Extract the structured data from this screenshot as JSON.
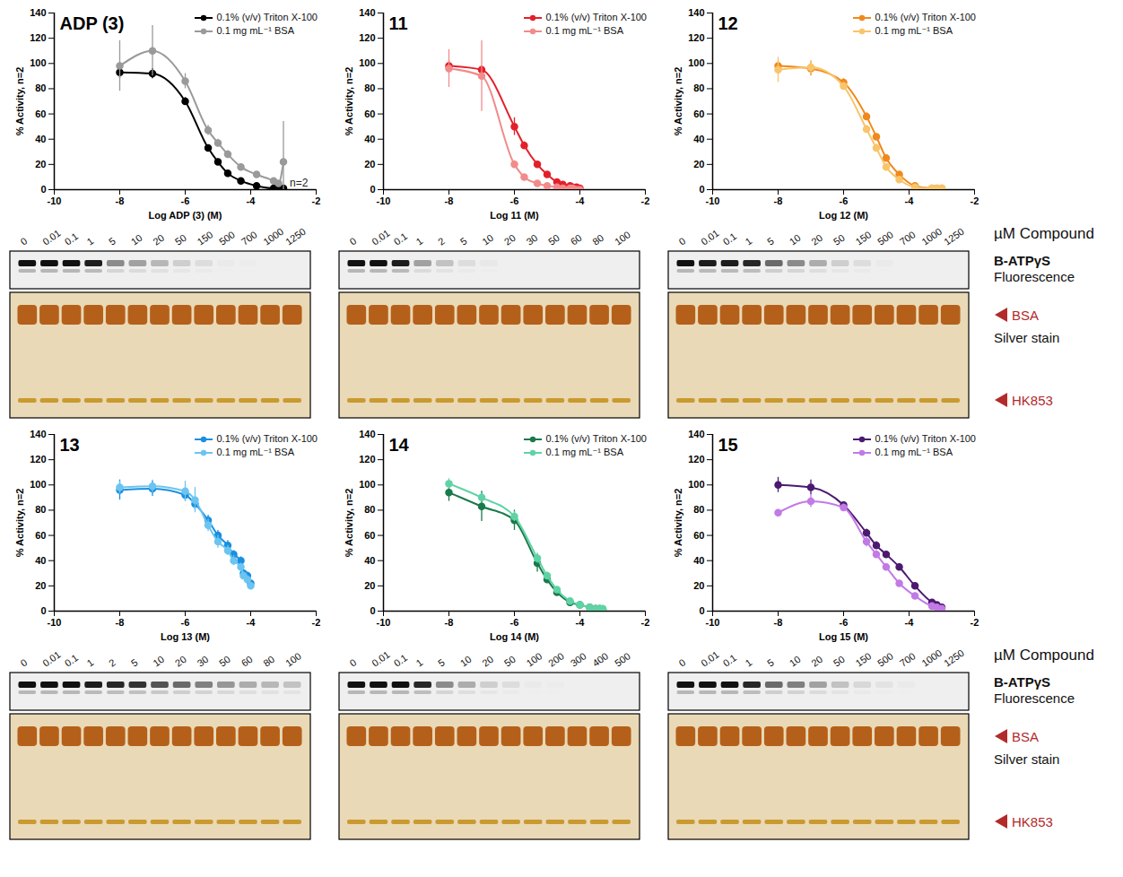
{
  "chart_data": [
    {
      "type": "line",
      "title": "ADP (3)",
      "x_label": "Log ADP (3) (M)",
      "y_label": "% Activity, n=2",
      "xlim": [
        -10,
        -2
      ],
      "xticks": [
        -10,
        -8,
        -6,
        -4,
        -2
      ],
      "ylim": [
        0,
        140
      ],
      "yticks": [
        0,
        20,
        40,
        60,
        80,
        100,
        120,
        140
      ],
      "legend": "top-right",
      "x": [
        -8,
        -7,
        -6,
        -5.3,
        -5,
        -4.7,
        -4.3,
        -3.82,
        -3.3,
        -3.15,
        -3
      ],
      "series": [
        {
          "name": "0.1% (v/v) Triton X-100",
          "color": "#000000",
          "marker": "circle",
          "line_style": "solid",
          "values": [
            93,
            92,
            70,
            33,
            22,
            13,
            7,
            3,
            1,
            1,
            1
          ],
          "errors": [
            5,
            4,
            3,
            2,
            2,
            1,
            1,
            1,
            1,
            1,
            1
          ]
        },
        {
          "name": "0.1 mg mL⁻¹ BSA",
          "color": "#9a9a9a",
          "marker": "circle",
          "line_style": "solid",
          "values": [
            98,
            110,
            86,
            47,
            37,
            28,
            18,
            12,
            7,
            5,
            22
          ],
          "errors": [
            20,
            20,
            6,
            4,
            3,
            3,
            2,
            2,
            2,
            2,
            32
          ]
        }
      ],
      "annotations": [
        {
          "text": "n=2",
          "x": -3,
          "y": 5
        }
      ],
      "gel": {
        "lanes": [
          "0",
          "0.01",
          "0.1",
          "1",
          "5",
          "10",
          "20",
          "50",
          "150",
          "500",
          "700",
          "1000",
          "1250"
        ],
        "fluorescence": [
          1,
          1,
          1,
          0.95,
          0.45,
          0.35,
          0.25,
          0.15,
          0.08,
          0.02,
          0.01,
          0,
          0
        ]
      }
    },
    {
      "type": "line",
      "title": "11",
      "x_label": "Log 11 (M)",
      "y_label": "% Activity, n=2",
      "xlim": [
        -10,
        -2
      ],
      "xticks": [
        -10,
        -8,
        -6,
        -4,
        -2
      ],
      "ylim": [
        0,
        140
      ],
      "yticks": [
        0,
        20,
        40,
        60,
        80,
        100,
        120,
        140
      ],
      "legend": "top-right",
      "x": [
        -8,
        -7,
        -6,
        -5.7,
        -5.3,
        -5,
        -4.7,
        -4.52,
        -4.3,
        -4.22,
        -4.1,
        -4
      ],
      "series": [
        {
          "name": "0.1% (v/v) Triton X-100",
          "color": "#e3202a",
          "marker": "circle",
          "line_style": "solid",
          "values": [
            98,
            95,
            50,
            35,
            20,
            12,
            6,
            4,
            3,
            2,
            2,
            1
          ],
          "errors": [
            4,
            3,
            7,
            3,
            2,
            2,
            1,
            1,
            1,
            1,
            1,
            1
          ]
        },
        {
          "name": "0.1 mg mL⁻¹ BSA",
          "color": "#f28b8b",
          "marker": "circle",
          "line_style": "solid",
          "values": [
            96,
            90,
            20,
            10,
            5,
            3,
            2,
            1,
            1,
            1,
            0,
            0
          ],
          "errors": [
            15,
            28,
            3,
            2,
            1,
            1,
            1,
            1,
            1,
            1,
            1,
            1
          ]
        }
      ],
      "gel": {
        "lanes": [
          "0",
          "0.01",
          "0.1",
          "1",
          "2",
          "5",
          "10",
          "20",
          "30",
          "50",
          "60",
          "80",
          "100"
        ],
        "fluorescence": [
          1,
          1,
          0.95,
          0.35,
          0.2,
          0.08,
          0.03,
          0,
          0,
          0,
          0,
          0,
          0
        ]
      }
    },
    {
      "type": "line",
      "title": "12",
      "x_label": "Log 12 (M)",
      "y_label": "% Activity, n=2",
      "xlim": [
        -10,
        -2
      ],
      "xticks": [
        -10,
        -8,
        -6,
        -4,
        -2
      ],
      "ylim": [
        0,
        140
      ],
      "yticks": [
        0,
        20,
        40,
        60,
        80,
        100,
        120,
        140
      ],
      "legend": "top-right",
      "x": [
        -8,
        -7,
        -6,
        -5.3,
        -5,
        -4.7,
        -4.3,
        -3.82,
        -3.3,
        -3.15,
        -3
      ],
      "series": [
        {
          "name": "0.1% (v/v) Triton X-100",
          "color": "#f0891c",
          "marker": "circle",
          "line_style": "solid",
          "values": [
            98,
            96,
            85,
            58,
            42,
            25,
            12,
            3,
            1,
            1,
            1
          ],
          "errors": [
            4,
            6,
            3,
            3,
            2,
            2,
            2,
            1,
            1,
            1,
            1
          ]
        },
        {
          "name": "0.1 mg mL⁻¹ BSA",
          "color": "#f9c46a",
          "marker": "circle",
          "line_style": "solid",
          "values": [
            95,
            97,
            82,
            48,
            33,
            18,
            8,
            2,
            1,
            1,
            1
          ],
          "errors": [
            10,
            5,
            3,
            3,
            3,
            2,
            2,
            1,
            1,
            1,
            1
          ]
        }
      ],
      "gel": {
        "lanes": [
          "0",
          "0.01",
          "0.1",
          "1",
          "5",
          "10",
          "20",
          "50",
          "150",
          "500",
          "700",
          "1000",
          "1250"
        ],
        "fluorescence": [
          1,
          0.95,
          0.95,
          0.9,
          0.6,
          0.45,
          0.3,
          0.15,
          0.08,
          0.02,
          0,
          0,
          0
        ]
      }
    },
    {
      "type": "line",
      "title": "13",
      "x_label": "Log 13 (M)",
      "y_label": "% Activity, n=2",
      "xlim": [
        -10,
        -2
      ],
      "xticks": [
        -10,
        -8,
        -6,
        -4,
        -2
      ],
      "ylim": [
        0,
        140
      ],
      "yticks": [
        0,
        20,
        40,
        60,
        80,
        100,
        120,
        140
      ],
      "legend": "top-right",
      "x": [
        -8,
        -7,
        -6,
        -5.7,
        -5.3,
        -5,
        -4.7,
        -4.52,
        -4.3,
        -4.22,
        -4.1,
        -4
      ],
      "series": [
        {
          "name": "0.1% (v/v) Triton X-100",
          "color": "#1a8fe0",
          "marker": "circle",
          "line_style": "solid",
          "values": [
            96,
            97,
            92,
            85,
            72,
            60,
            52,
            45,
            40,
            30,
            28,
            22
          ],
          "errors": [
            8,
            6,
            5,
            5,
            4,
            4,
            4,
            3,
            3,
            3,
            3,
            3
          ]
        },
        {
          "name": "0.1 mg mL⁻¹ BSA",
          "color": "#6cc4f0",
          "marker": "circle",
          "line_style": "solid",
          "values": [
            98,
            99,
            95,
            88,
            68,
            55,
            48,
            40,
            35,
            28,
            25,
            20
          ],
          "errors": [
            5,
            5,
            8,
            10,
            5,
            5,
            4,
            4,
            3,
            3,
            3,
            3
          ]
        }
      ],
      "gel": {
        "lanes": [
          "0",
          "0.01",
          "0.1",
          "1",
          "2",
          "5",
          "10",
          "20",
          "30",
          "50",
          "60",
          "80",
          "100"
        ],
        "fluorescence": [
          1,
          1,
          1,
          0.95,
          0.9,
          0.85,
          0.7,
          0.6,
          0.5,
          0.4,
          0.3,
          0.25,
          0.2
        ]
      }
    },
    {
      "type": "line",
      "title": "14",
      "x_label": "Log 14 (M)",
      "y_label": "% Activity, n=2",
      "xlim": [
        -10,
        -2
      ],
      "xticks": [
        -10,
        -8,
        -6,
        -4,
        -2
      ],
      "ylim": [
        0,
        140
      ],
      "yticks": [
        0,
        20,
        40,
        60,
        80,
        100,
        120,
        140
      ],
      "legend": "top-right",
      "x": [
        -8,
        -7,
        -6,
        -5.3,
        -5,
        -4.7,
        -4.3,
        -4,
        -3.7,
        -3.52,
        -3.4,
        -3.3
      ],
      "series": [
        {
          "name": "0.1% (v/v) Triton X-100",
          "color": "#1a7a4a",
          "marker": "circle",
          "line_style": "solid",
          "values": [
            94,
            83,
            72,
            38,
            25,
            15,
            7,
            5,
            3,
            2,
            2,
            1
          ],
          "errors": [
            7,
            12,
            8,
            7,
            3,
            2,
            2,
            2,
            1,
            1,
            1,
            1
          ]
        },
        {
          "name": "0.1 mg mL⁻¹ BSA",
          "color": "#5fd3a6",
          "marker": "circle",
          "line_style": "solid",
          "values": [
            101,
            90,
            75,
            42,
            28,
            17,
            8,
            5,
            3,
            2,
            2,
            2
          ],
          "errors": [
            4,
            3,
            4,
            4,
            3,
            2,
            2,
            2,
            1,
            1,
            1,
            1
          ]
        }
      ],
      "gel": {
        "lanes": [
          "0",
          "0.01",
          "0.1",
          "1",
          "5",
          "10",
          "20",
          "50",
          "100",
          "200",
          "300",
          "400",
          "500"
        ],
        "fluorescence": [
          1,
          1,
          1,
          0.9,
          0.45,
          0.3,
          0.15,
          0.08,
          0.02,
          0.01,
          0,
          0,
          0
        ]
      }
    },
    {
      "type": "line",
      "title": "15",
      "x_label": "Log 15 (M)",
      "y_label": "% Activity, n=2",
      "xlim": [
        -10,
        -2
      ],
      "xticks": [
        -10,
        -8,
        -6,
        -4,
        -2
      ],
      "ylim": [
        0,
        140
      ],
      "yticks": [
        0,
        20,
        40,
        60,
        80,
        100,
        120,
        140
      ],
      "legend": "top-right",
      "x": [
        -8,
        -7,
        -6,
        -5.3,
        -5,
        -4.7,
        -4.3,
        -3.82,
        -3.3,
        -3.15,
        -3
      ],
      "series": [
        {
          "name": "0.1% (v/v) Triton X-100",
          "color": "#4b1a70",
          "marker": "circle",
          "line_style": "solid",
          "values": [
            100,
            98,
            84,
            62,
            52,
            45,
            35,
            20,
            7,
            5,
            3
          ],
          "errors": [
            6,
            6,
            2,
            3,
            3,
            2,
            2,
            2,
            2,
            1,
            1
          ]
        },
        {
          "name": "0.1 mg mL⁻¹ BSA",
          "color": "#c27ae6",
          "marker": "circle",
          "line_style": "solid",
          "values": [
            78,
            87,
            82,
            55,
            45,
            35,
            22,
            12,
            4,
            3,
            2
          ],
          "errors": [
            2,
            5,
            3,
            4,
            3,
            2,
            2,
            2,
            1,
            1,
            1
          ]
        }
      ],
      "gel": {
        "lanes": [
          "0",
          "0.01",
          "0.1",
          "1",
          "5",
          "10",
          "20",
          "50",
          "150",
          "500",
          "700",
          "1000",
          "1250"
        ],
        "fluorescence": [
          1,
          1,
          1,
          0.9,
          0.6,
          0.5,
          0.35,
          0.2,
          0.1,
          0.05,
          0.02,
          0,
          0
        ]
      }
    }
  ],
  "gel_labels": {
    "lanes_title": "µM Compound",
    "fluorescence_title": "B-ATPγS",
    "fluorescence_subtitle": "Fluorescence",
    "silver_title": "Silver stain",
    "upper_band": "BSA",
    "lower_band": "HK853"
  }
}
